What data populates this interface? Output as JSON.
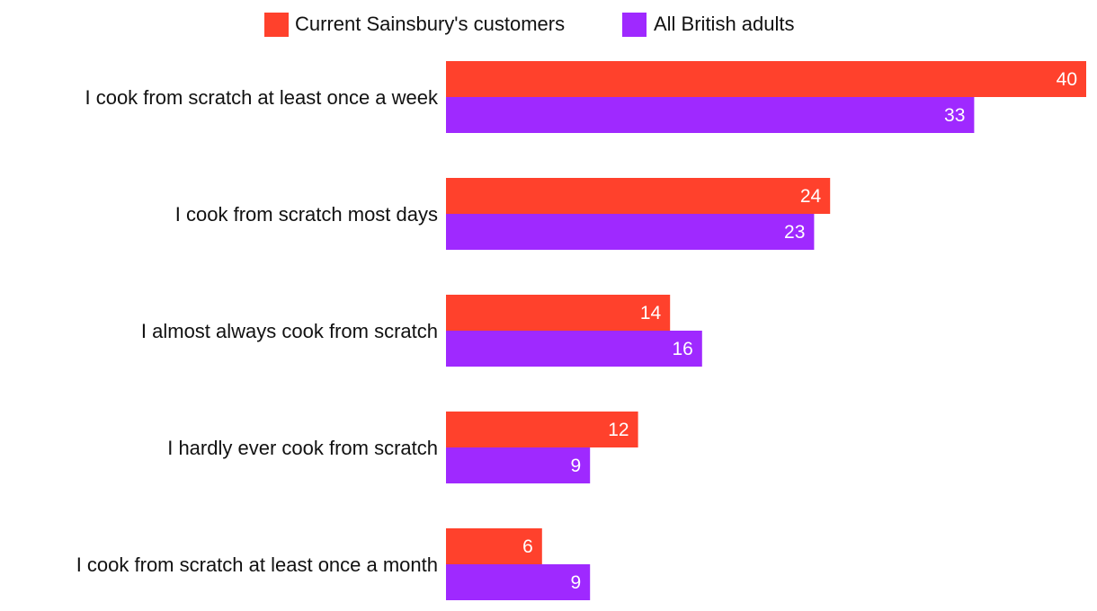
{
  "chart_data": {
    "type": "bar",
    "orientation": "horizontal",
    "categories": [
      "I cook from scratch at least once a week",
      "I cook from scratch most days",
      "I almost always cook from scratch",
      "I hardly ever cook from scratch",
      "I cook from scratch at least once a month"
    ],
    "series": [
      {
        "name": "Current Sainsbury's customers",
        "color": "#ff412c",
        "values": [
          40,
          24,
          14,
          12,
          6
        ]
      },
      {
        "name": "All British adults",
        "color": "#9f29ff",
        "values": [
          33,
          23,
          16,
          9,
          9
        ]
      }
    ],
    "data_labels": true,
    "legend_position": "top",
    "grid": false,
    "xlim": [
      0,
      40
    ]
  }
}
